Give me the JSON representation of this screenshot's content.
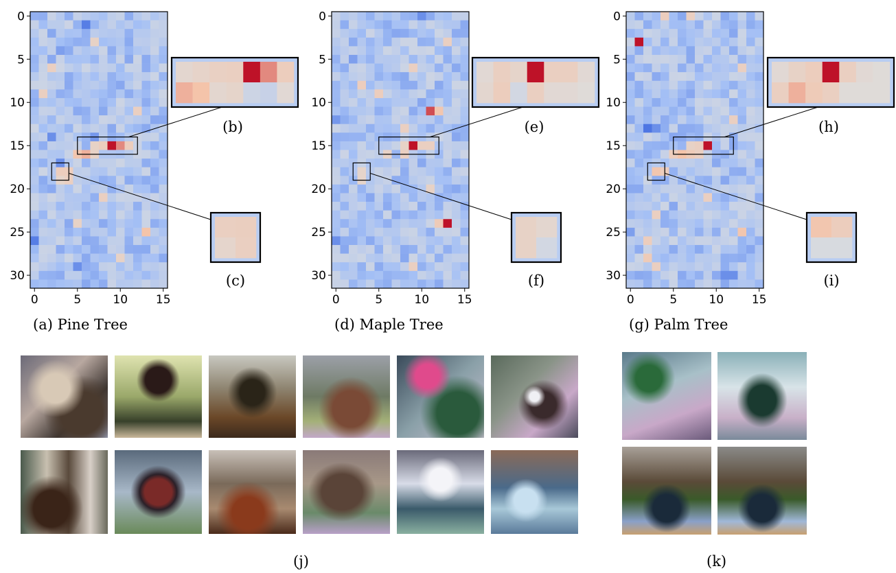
{
  "chart_data": [
    {
      "type": "heatmap",
      "caption": "(a) Pine Tree",
      "rows": 32,
      "cols": 16,
      "x_ticks": [
        "0",
        "5",
        "10",
        "15"
      ],
      "y_ticks": [
        "0",
        "5",
        "10",
        "15",
        "20",
        "25",
        "30"
      ],
      "hot_cells": [
        [
          15,
          9,
          1.0
        ],
        [
          15,
          10,
          0.7
        ],
        [
          15,
          8,
          0.35
        ],
        [
          15,
          7,
          0.25
        ],
        [
          15,
          11,
          0.35
        ],
        [
          16,
          6,
          0.6
        ],
        [
          16,
          5,
          0.5
        ],
        [
          16,
          7,
          0.25
        ],
        [
          18,
          3,
          0.35
        ],
        [
          18,
          4,
          0.35
        ],
        [
          19,
          4,
          0.3
        ],
        [
          19,
          3,
          0.2
        ],
        [
          6,
          2,
          0.3
        ],
        [
          11,
          12,
          0.3
        ],
        [
          21,
          8,
          0.3
        ],
        [
          24,
          5,
          0.25
        ],
        [
          25,
          13,
          0.55
        ],
        [
          3,
          7,
          0.25
        ],
        [
          9,
          1,
          0.3
        ],
        [
          28,
          10,
          0.25
        ]
      ],
      "cold_cells": [
        [
          1,
          6,
          0.7
        ],
        [
          4,
          3,
          0.5
        ],
        [
          14,
          2,
          0.6
        ],
        [
          14,
          7,
          0.55
        ],
        [
          17,
          3,
          0.6
        ],
        [
          26,
          0,
          0.7
        ],
        [
          29,
          5,
          0.6
        ],
        [
          8,
          10,
          0.45
        ],
        [
          22,
          12,
          0.4
        ],
        [
          12,
          14,
          0.45
        ],
        [
          27,
          8,
          0.4
        ],
        [
          2,
          11,
          0.4
        ]
      ],
      "zooms": [
        {
          "label": "(b)",
          "rows": [
            15,
            17
          ],
          "cols": [
            6,
            13
          ],
          "values": [
            [
              0.15,
              0.22,
              0.28,
              0.3,
              1.0,
              0.7,
              0.35
            ],
            [
              0.6,
              0.55,
              0.15,
              0.2,
              -0.15,
              -0.2,
              0.1
            ]
          ]
        },
        {
          "label": "(c)",
          "rows": [
            18,
            20
          ],
          "cols": [
            3,
            5
          ],
          "values": [
            [
              0.3,
              0.32
            ],
            [
              0.18,
              0.3
            ]
          ]
        }
      ]
    },
    {
      "type": "heatmap",
      "caption": "(d) Maple Tree",
      "rows": 32,
      "cols": 16,
      "x_ticks": [
        "0",
        "5",
        "10",
        "15"
      ],
      "y_ticks": [
        "0",
        "5",
        "10",
        "15",
        "20",
        "25",
        "30"
      ],
      "hot_cells": [
        [
          15,
          9,
          1.0
        ],
        [
          15,
          8,
          0.25
        ],
        [
          15,
          10,
          0.3
        ],
        [
          15,
          11,
          0.3
        ],
        [
          16,
          6,
          0.25
        ],
        [
          16,
          8,
          0.3
        ],
        [
          11,
          11,
          0.85
        ],
        [
          11,
          12,
          0.5
        ],
        [
          24,
          13,
          1.0
        ],
        [
          24,
          12,
          0.4
        ],
        [
          18,
          3,
          0.2
        ],
        [
          19,
          3,
          0.2
        ],
        [
          3,
          13,
          0.3
        ],
        [
          8,
          3,
          0.35
        ],
        [
          9,
          5,
          0.35
        ],
        [
          6,
          9,
          0.3
        ],
        [
          29,
          9,
          0.3
        ],
        [
          20,
          11,
          0.25
        ],
        [
          13,
          8,
          0.3
        ]
      ],
      "cold_cells": [
        [
          0,
          10,
          0.6
        ],
        [
          5,
          2,
          0.5
        ],
        [
          12,
          0,
          0.55
        ],
        [
          14,
          14,
          0.45
        ],
        [
          26,
          0,
          0.6
        ],
        [
          21,
          4,
          0.45
        ],
        [
          28,
          12,
          0.4
        ],
        [
          2,
          7,
          0.45
        ],
        [
          18,
          13,
          0.4
        ],
        [
          10,
          10,
          0.45
        ]
      ],
      "zooms": [
        {
          "label": "(e)",
          "rows": [
            15,
            17
          ],
          "cols": [
            6,
            13
          ],
          "values": [
            [
              0.1,
              0.3,
              0.2,
              1.0,
              0.3,
              0.3,
              0.1
            ],
            [
              0.15,
              0.35,
              -0.1,
              0.3,
              0.1,
              0.1,
              0.05
            ]
          ]
        },
        {
          "label": "(f)",
          "rows": [
            18,
            20
          ],
          "cols": [
            3,
            5
          ],
          "values": [
            [
              0.25,
              0.15
            ],
            [
              0.25,
              -0.1
            ]
          ]
        }
      ]
    },
    {
      "type": "heatmap",
      "caption": "(g) Palm Tree",
      "rows": 32,
      "cols": 16,
      "x_ticks": [
        "0",
        "5",
        "10",
        "15"
      ],
      "y_ticks": [
        "0",
        "5",
        "10",
        "15",
        "20",
        "25",
        "30"
      ],
      "hot_cells": [
        [
          15,
          9,
          1.0
        ],
        [
          15,
          8,
          0.3
        ],
        [
          15,
          7,
          0.25
        ],
        [
          16,
          5,
          0.35
        ],
        [
          16,
          6,
          0.55
        ],
        [
          16,
          7,
          0.4
        ],
        [
          16,
          8,
          0.3
        ],
        [
          18,
          3,
          0.5
        ],
        [
          18,
          4,
          0.35
        ],
        [
          3,
          1,
          1.0
        ],
        [
          0,
          4,
          0.35
        ],
        [
          0,
          7,
          0.3
        ],
        [
          25,
          13,
          0.5
        ],
        [
          23,
          3,
          0.3
        ],
        [
          26,
          2,
          0.35
        ],
        [
          28,
          2,
          0.4
        ],
        [
          29,
          3,
          0.3
        ],
        [
          12,
          12,
          0.3
        ],
        [
          21,
          9,
          0.3
        ],
        [
          6,
          13,
          0.3
        ]
      ],
      "cold_cells": [
        [
          13,
          2,
          0.75
        ],
        [
          13,
          3,
          0.6
        ],
        [
          30,
          11,
          0.6
        ],
        [
          30,
          12,
          0.6
        ],
        [
          22,
          5,
          0.45
        ],
        [
          9,
          7,
          0.45
        ],
        [
          19,
          11,
          0.45
        ],
        [
          2,
          12,
          0.45
        ],
        [
          27,
          14,
          0.45
        ],
        [
          25,
          0,
          0.5
        ]
      ],
      "zooms": [
        {
          "label": "(h)",
          "rows": [
            15,
            17
          ],
          "cols": [
            6,
            13
          ],
          "values": [
            [
              0.1,
              0.25,
              0.35,
              1.0,
              0.3,
              0.1,
              0.05
            ],
            [
              0.3,
              0.6,
              0.4,
              0.3,
              0.05,
              0.05,
              0.05
            ]
          ]
        },
        {
          "label": "(i)",
          "rows": [
            18,
            20
          ],
          "cols": [
            3,
            5
          ],
          "values": [
            [
              0.5,
              0.35
            ],
            [
              -0.05,
              -0.05
            ]
          ]
        }
      ]
    }
  ],
  "captions": {
    "j": "(j)",
    "k": "(k)"
  }
}
